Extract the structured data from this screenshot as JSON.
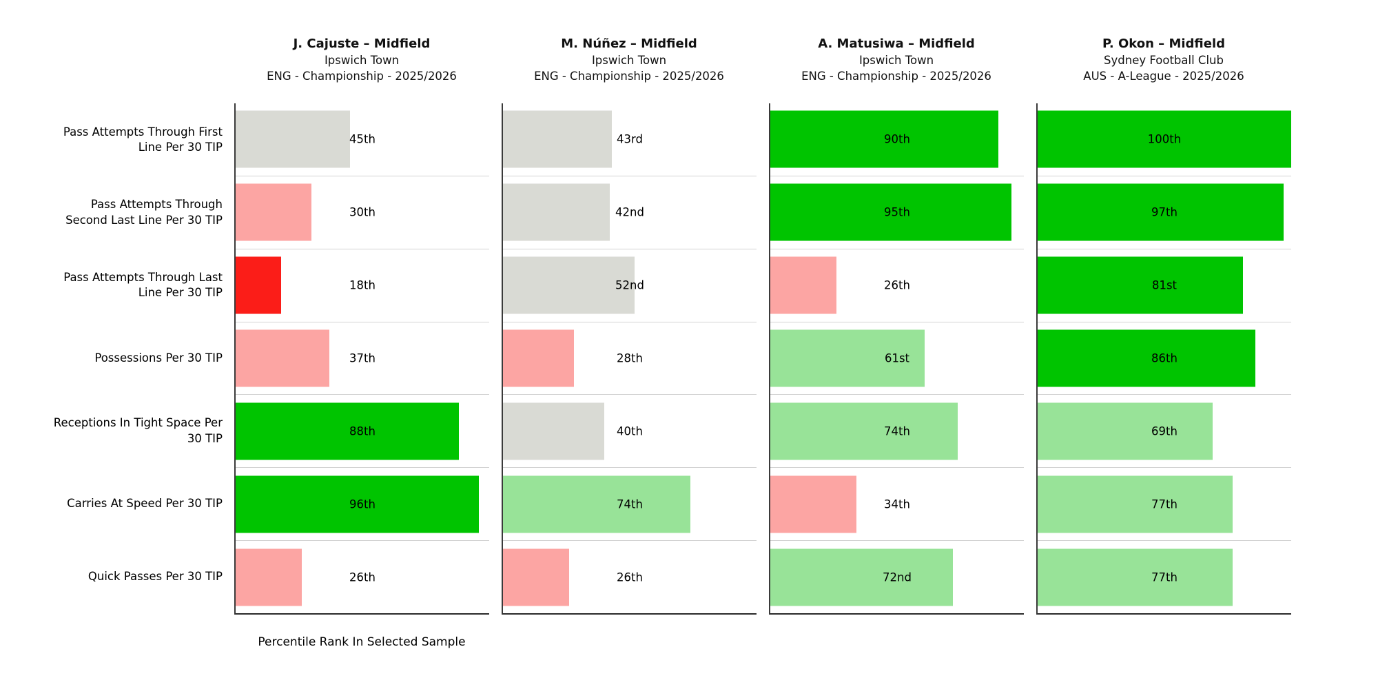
{
  "chart_data": {
    "type": "bar",
    "orientation": "horizontal",
    "xlabel": "Percentile Rank In Selected Sample",
    "xlim": [
      0,
      100
    ],
    "grid": "row separator lines only, no ticks",
    "legend_position": "none",
    "value_format": "ordinal percentile rank",
    "categories": [
      "Pass Attempts Through First Line Per 30 TIP",
      "Pass Attempts Through Second Last Line Per 30 TIP",
      "Pass Attempts Through Last Line Per 30 TIP",
      "Possessions Per 30 TIP",
      "Receptions In Tight Space Per 30 TIP",
      "Carries At Speed Per 30 TIP",
      "Quick Passes Per 30 TIP"
    ],
    "palette": {
      "excellent": "#00c400",
      "good": "#98e398",
      "average": "#d9dad4",
      "poor": "#fca5a3",
      "very_poor": "#fb1d18"
    },
    "series": [
      {
        "name": "J. Cajuste – Midfield",
        "club": "Ipswich Town",
        "league": "ENG - Championship - 2025/2026",
        "bars": [
          {
            "value": 45,
            "label": "45th",
            "color": "#d9dad4"
          },
          {
            "value": 30,
            "label": "30th",
            "color": "#fca5a3"
          },
          {
            "value": 18,
            "label": "18th",
            "color": "#fb1d18"
          },
          {
            "value": 37,
            "label": "37th",
            "color": "#fca5a3"
          },
          {
            "value": 88,
            "label": "88th",
            "color": "#00c400"
          },
          {
            "value": 96,
            "label": "96th",
            "color": "#00c400"
          },
          {
            "value": 26,
            "label": "26th",
            "color": "#fca5a3"
          }
        ]
      },
      {
        "name": "M. Núñez – Midfield",
        "club": "Ipswich Town",
        "league": "ENG - Championship - 2025/2026",
        "bars": [
          {
            "value": 43,
            "label": "43rd",
            "color": "#d9dad4"
          },
          {
            "value": 42,
            "label": "42nd",
            "color": "#d9dad4"
          },
          {
            "value": 52,
            "label": "52nd",
            "color": "#d9dad4"
          },
          {
            "value": 28,
            "label": "28th",
            "color": "#fca5a3"
          },
          {
            "value": 40,
            "label": "40th",
            "color": "#d9dad4"
          },
          {
            "value": 74,
            "label": "74th",
            "color": "#98e398"
          },
          {
            "value": 26,
            "label": "26th",
            "color": "#fca5a3"
          }
        ]
      },
      {
        "name": "A. Matusiwa – Midfield",
        "club": "Ipswich Town",
        "league": "ENG - Championship - 2025/2026",
        "bars": [
          {
            "value": 90,
            "label": "90th",
            "color": "#00c400"
          },
          {
            "value": 95,
            "label": "95th",
            "color": "#00c400"
          },
          {
            "value": 26,
            "label": "26th",
            "color": "#fca5a3"
          },
          {
            "value": 61,
            "label": "61st",
            "color": "#98e398"
          },
          {
            "value": 74,
            "label": "74th",
            "color": "#98e398"
          },
          {
            "value": 34,
            "label": "34th",
            "color": "#fca5a3"
          },
          {
            "value": 72,
            "label": "72nd",
            "color": "#98e398"
          }
        ]
      },
      {
        "name": "P. Okon – Midfield",
        "club": "Sydney Football Club",
        "league": "AUS - A-League - 2025/2026",
        "bars": [
          {
            "value": 100,
            "label": "100th",
            "color": "#00c400"
          },
          {
            "value": 97,
            "label": "97th",
            "color": "#00c400"
          },
          {
            "value": 81,
            "label": "81st",
            "color": "#00c400"
          },
          {
            "value": 86,
            "label": "86th",
            "color": "#00c400"
          },
          {
            "value": 69,
            "label": "69th",
            "color": "#98e398"
          },
          {
            "value": 77,
            "label": "77th",
            "color": "#98e398"
          },
          {
            "value": 77,
            "label": "77th",
            "color": "#98e398"
          }
        ]
      }
    ]
  }
}
